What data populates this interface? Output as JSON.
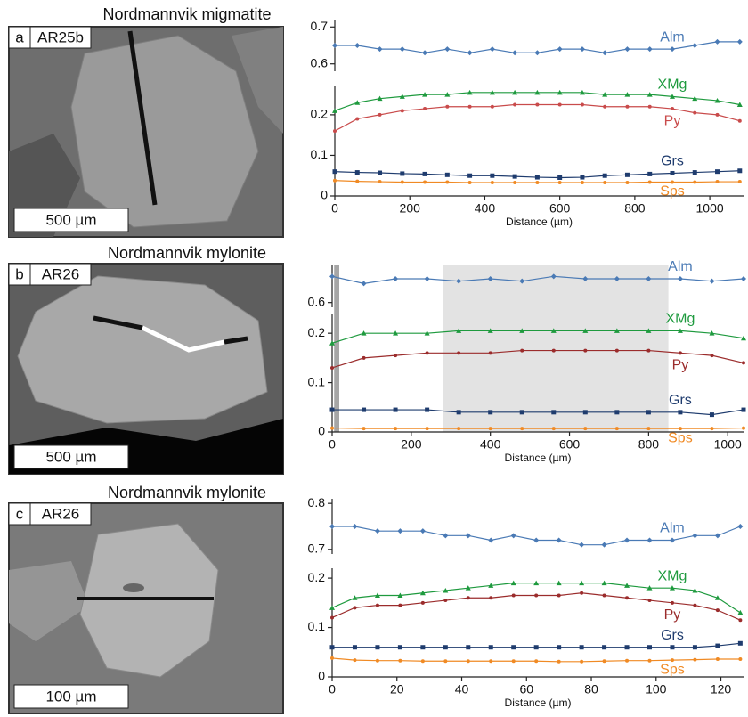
{
  "chart_data": [
    {
      "type": "line",
      "title": "Nordmannvik migmatite",
      "panel_label": "a",
      "sample": "AR25b",
      "scale_bar": "500 µm",
      "x_label": "Distance (µm)",
      "xlim": [
        0,
        1090
      ],
      "xticks": [
        0,
        200,
        400,
        600,
        800,
        1000
      ],
      "y2lim": [
        0.58,
        0.72
      ],
      "y2ticks": [
        0.6,
        0.7
      ],
      "ylim": [
        0,
        0.27
      ],
      "yticks": [
        0,
        0.1,
        0.2
      ],
      "x": [
        0,
        60,
        120,
        180,
        240,
        300,
        360,
        420,
        480,
        540,
        600,
        660,
        720,
        780,
        840,
        900,
        960,
        1020,
        1080
      ],
      "series": [
        {
          "name": "Alm",
          "color": "#4a7ab5",
          "marker": "diamond",
          "axis": "y2",
          "values": [
            0.65,
            0.65,
            0.64,
            0.64,
            0.63,
            0.64,
            0.63,
            0.64,
            0.63,
            0.63,
            0.64,
            0.64,
            0.63,
            0.64,
            0.64,
            0.64,
            0.65,
            0.66,
            0.66
          ]
        },
        {
          "name": "XMg",
          "color": "#1e9a3e",
          "marker": "triangle",
          "values": [
            0.21,
            0.23,
            0.24,
            0.245,
            0.25,
            0.25,
            0.255,
            0.255,
            0.255,
            0.255,
            0.255,
            0.255,
            0.25,
            0.25,
            0.25,
            0.245,
            0.24,
            0.235,
            0.225
          ]
        },
        {
          "name": "Py",
          "color": "#c94b4b",
          "marker": "circle",
          "values": [
            0.16,
            0.19,
            0.2,
            0.21,
            0.215,
            0.22,
            0.22,
            0.22,
            0.225,
            0.225,
            0.225,
            0.225,
            0.22,
            0.22,
            0.22,
            0.215,
            0.205,
            0.2,
            0.185
          ]
        },
        {
          "name": "Grs",
          "color": "#1f3c6e",
          "marker": "square",
          "values": [
            0.06,
            0.058,
            0.057,
            0.055,
            0.054,
            0.052,
            0.05,
            0.05,
            0.048,
            0.046,
            0.045,
            0.046,
            0.05,
            0.052,
            0.054,
            0.056,
            0.058,
            0.06,
            0.062
          ]
        },
        {
          "name": "Sps",
          "color": "#f08a24",
          "marker": "circle",
          "values": [
            0.038,
            0.036,
            0.035,
            0.034,
            0.034,
            0.034,
            0.033,
            0.033,
            0.033,
            0.033,
            0.033,
            0.033,
            0.033,
            0.033,
            0.034,
            0.034,
            0.034,
            0.035,
            0.035
          ]
        }
      ]
    },
    {
      "type": "line",
      "title": "Nordmannvik mylonite",
      "panel_label": "b",
      "sample": "AR26",
      "scale_bar": "500 µm",
      "x_label": "Distance (µm)",
      "xlim": [
        0,
        1040
      ],
      "xticks": [
        0,
        200,
        400,
        600,
        800,
        1000
      ],
      "y2lim": [
        0.58,
        0.76
      ],
      "y2ticks": [
        0.6
      ],
      "ylim": [
        0,
        0.24
      ],
      "yticks": [
        0,
        0.1,
        0.2
      ],
      "shaded": [
        {
          "x": [
            5,
            18
          ],
          "color": "#a6a6a6"
        },
        {
          "x": [
            280,
            850
          ],
          "color": "#e3e3e3"
        }
      ],
      "x": [
        0,
        80,
        160,
        240,
        320,
        400,
        480,
        560,
        640,
        720,
        800,
        880,
        960,
        1040
      ],
      "series": [
        {
          "name": "Alm",
          "color": "#4a7ab5",
          "marker": "diamond",
          "axis": "y2",
          "values": [
            0.71,
            0.68,
            0.7,
            0.7,
            0.69,
            0.7,
            0.69,
            0.71,
            0.7,
            0.7,
            0.7,
            0.7,
            0.69,
            0.7
          ]
        },
        {
          "name": "XMg",
          "color": "#1e9a3e",
          "marker": "triangle",
          "values": [
            0.18,
            0.2,
            0.2,
            0.2,
            0.205,
            0.205,
            0.205,
            0.205,
            0.205,
            0.205,
            0.205,
            0.205,
            0.2,
            0.19
          ]
        },
        {
          "name": "Py",
          "color": "#9b2c2c",
          "marker": "circle",
          "values": [
            0.13,
            0.15,
            0.155,
            0.16,
            0.16,
            0.16,
            0.165,
            0.165,
            0.165,
            0.165,
            0.165,
            0.16,
            0.155,
            0.14
          ]
        },
        {
          "name": "Grs",
          "color": "#1f3c6e",
          "marker": "square",
          "values": [
            0.045,
            0.045,
            0.045,
            0.045,
            0.04,
            0.04,
            0.04,
            0.04,
            0.04,
            0.04,
            0.04,
            0.04,
            0.035,
            0.045
          ]
        },
        {
          "name": "Sps",
          "color": "#f08a24",
          "marker": "circle",
          "values": [
            0.008,
            0.007,
            0.007,
            0.007,
            0.007,
            0.007,
            0.007,
            0.007,
            0.007,
            0.007,
            0.007,
            0.007,
            0.007,
            0.008
          ]
        }
      ]
    },
    {
      "type": "line",
      "title": "Nordmannvik mylonite",
      "panel_label": "c",
      "sample": "AR26",
      "scale_bar": "100 µm",
      "x_label": "Distance (µm)",
      "xlim": [
        0,
        127
      ],
      "xticks": [
        0,
        20,
        40,
        60,
        80,
        100,
        120
      ],
      "y2lim": [
        0.69,
        0.81
      ],
      "y2ticks": [
        0.7,
        0.8
      ],
      "ylim": [
        0,
        0.22
      ],
      "yticks": [
        0,
        0.1,
        0.2
      ],
      "x": [
        0,
        7,
        14,
        21,
        28,
        35,
        42,
        49,
        56,
        63,
        70,
        77,
        84,
        91,
        98,
        105,
        112,
        119,
        126
      ],
      "series": [
        {
          "name": "Alm",
          "color": "#4a7ab5",
          "marker": "diamond",
          "axis": "y2",
          "values": [
            0.75,
            0.75,
            0.74,
            0.74,
            0.74,
            0.73,
            0.73,
            0.72,
            0.73,
            0.72,
            0.72,
            0.71,
            0.71,
            0.72,
            0.72,
            0.72,
            0.73,
            0.73,
            0.75
          ]
        },
        {
          "name": "XMg",
          "color": "#1e9a3e",
          "marker": "triangle",
          "values": [
            0.14,
            0.16,
            0.165,
            0.165,
            0.17,
            0.175,
            0.18,
            0.185,
            0.19,
            0.19,
            0.19,
            0.19,
            0.19,
            0.185,
            0.18,
            0.18,
            0.175,
            0.16,
            0.13
          ]
        },
        {
          "name": "Py",
          "color": "#9b2c2c",
          "marker": "circle",
          "values": [
            0.12,
            0.14,
            0.145,
            0.145,
            0.15,
            0.155,
            0.16,
            0.16,
            0.165,
            0.165,
            0.165,
            0.17,
            0.165,
            0.16,
            0.155,
            0.15,
            0.145,
            0.135,
            0.115
          ]
        },
        {
          "name": "Grs",
          "color": "#1f3c6e",
          "marker": "square",
          "values": [
            0.06,
            0.06,
            0.06,
            0.06,
            0.06,
            0.06,
            0.06,
            0.06,
            0.06,
            0.06,
            0.06,
            0.06,
            0.06,
            0.06,
            0.06,
            0.06,
            0.06,
            0.063,
            0.068
          ]
        },
        {
          "name": "Sps",
          "color": "#f08a24",
          "marker": "circle",
          "values": [
            0.038,
            0.034,
            0.033,
            0.033,
            0.032,
            0.032,
            0.032,
            0.032,
            0.032,
            0.032,
            0.031,
            0.031,
            0.032,
            0.033,
            0.033,
            0.034,
            0.035,
            0.036,
            0.036
          ]
        }
      ]
    }
  ]
}
